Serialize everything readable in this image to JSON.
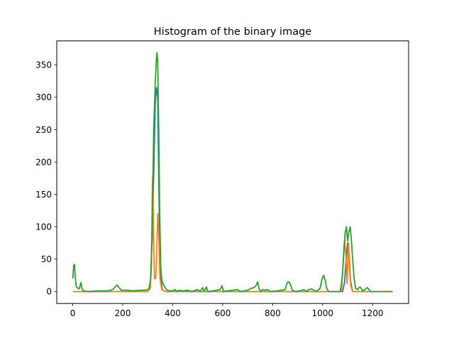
{
  "chart_data": {
    "type": "line",
    "title": "Histogram of the binary image",
    "xlabel": "",
    "ylabel": "",
    "xlim": [
      -64,
      1344
    ],
    "ylim": [
      -18.5,
      387
    ],
    "xticks": [
      0,
      200,
      400,
      600,
      800,
      1000,
      1200
    ],
    "yticks": [
      0,
      50,
      100,
      150,
      200,
      250,
      300,
      350
    ],
    "grid": false,
    "legend": "none",
    "series": [
      {
        "color": "#1f77b4",
        "points": [
          [
            0,
            0
          ],
          [
            300,
            0
          ],
          [
            310,
            5
          ],
          [
            318,
            80
          ],
          [
            325,
            200
          ],
          [
            330,
            290
          ],
          [
            335,
            315
          ],
          [
            340,
            300
          ],
          [
            345,
            150
          ],
          [
            350,
            30
          ],
          [
            358,
            3
          ],
          [
            370,
            0
          ],
          [
            1080,
            0
          ],
          [
            1088,
            15
          ],
          [
            1094,
            50
          ],
          [
            1100,
            75
          ],
          [
            1106,
            55
          ],
          [
            1112,
            15
          ],
          [
            1120,
            0
          ],
          [
            1280,
            0
          ]
        ]
      },
      {
        "color": "#ff7f0e",
        "points": [
          [
            0,
            0
          ],
          [
            300,
            0
          ],
          [
            310,
            5
          ],
          [
            315,
            40
          ],
          [
            318,
            150
          ],
          [
            320,
            180
          ],
          [
            323,
            100
          ],
          [
            327,
            20
          ],
          [
            332,
            20
          ],
          [
            336,
            60
          ],
          [
            340,
            120
          ],
          [
            344,
            90
          ],
          [
            349,
            20
          ],
          [
            356,
            3
          ],
          [
            370,
            0
          ],
          [
            1075,
            0
          ],
          [
            1082,
            40
          ],
          [
            1088,
            80
          ],
          [
            1093,
            55
          ],
          [
            1098,
            12
          ],
          [
            1101,
            50
          ],
          [
            1104,
            75
          ],
          [
            1107,
            40
          ],
          [
            1112,
            10
          ],
          [
            1120,
            0
          ],
          [
            1280,
            0
          ]
        ]
      },
      {
        "color": "#2ca02c",
        "points": [
          [
            0,
            20
          ],
          [
            4,
            40
          ],
          [
            7,
            42
          ],
          [
            10,
            22
          ],
          [
            14,
            8
          ],
          [
            20,
            5
          ],
          [
            26,
            4
          ],
          [
            30,
            10
          ],
          [
            33,
            14
          ],
          [
            36,
            6
          ],
          [
            42,
            1
          ],
          [
            60,
            0
          ],
          [
            100,
            1
          ],
          [
            140,
            1
          ],
          [
            160,
            3
          ],
          [
            172,
            8
          ],
          [
            178,
            10
          ],
          [
            185,
            6
          ],
          [
            195,
            2
          ],
          [
            220,
            2
          ],
          [
            240,
            1
          ],
          [
            270,
            2
          ],
          [
            290,
            2
          ],
          [
            305,
            4
          ],
          [
            312,
            20
          ],
          [
            318,
            100
          ],
          [
            324,
            250
          ],
          [
            330,
            320
          ],
          [
            334,
            355
          ],
          [
            337,
            369
          ],
          [
            340,
            355
          ],
          [
            344,
            250
          ],
          [
            348,
            120
          ],
          [
            352,
            40
          ],
          [
            356,
            18
          ],
          [
            362,
            12
          ],
          [
            368,
            7
          ],
          [
            375,
            3
          ],
          [
            385,
            1
          ],
          [
            400,
            1
          ],
          [
            410,
            3
          ],
          [
            415,
            0
          ],
          [
            425,
            2
          ],
          [
            440,
            1
          ],
          [
            460,
            2
          ],
          [
            475,
            0
          ],
          [
            500,
            3
          ],
          [
            510,
            0
          ],
          [
            520,
            6
          ],
          [
            526,
            0
          ],
          [
            535,
            7
          ],
          [
            540,
            0
          ],
          [
            560,
            1
          ],
          [
            590,
            3
          ],
          [
            597,
            9
          ],
          [
            603,
            0
          ],
          [
            620,
            1
          ],
          [
            640,
            2
          ],
          [
            660,
            3
          ],
          [
            670,
            0
          ],
          [
            700,
            2
          ],
          [
            715,
            5
          ],
          [
            725,
            6
          ],
          [
            735,
            10
          ],
          [
            740,
            15
          ],
          [
            745,
            5
          ],
          [
            752,
            0
          ],
          [
            760,
            3
          ],
          [
            770,
            2
          ],
          [
            780,
            3
          ],
          [
            790,
            0
          ],
          [
            820,
            1
          ],
          [
            850,
            3
          ],
          [
            858,
            14
          ],
          [
            865,
            15
          ],
          [
            872,
            10
          ],
          [
            878,
            2
          ],
          [
            890,
            0
          ],
          [
            910,
            1
          ],
          [
            925,
            3
          ],
          [
            935,
            0
          ],
          [
            945,
            3
          ],
          [
            955,
            4
          ],
          [
            965,
            2
          ],
          [
            975,
            0
          ],
          [
            990,
            5
          ],
          [
            998,
            20
          ],
          [
            1004,
            25
          ],
          [
            1010,
            18
          ],
          [
            1016,
            5
          ],
          [
            1024,
            0
          ],
          [
            1070,
            0
          ],
          [
            1078,
            20
          ],
          [
            1085,
            65
          ],
          [
            1090,
            90
          ],
          [
            1095,
            100
          ],
          [
            1100,
            78
          ],
          [
            1105,
            92
          ],
          [
            1110,
            100
          ],
          [
            1115,
            80
          ],
          [
            1120,
            50
          ],
          [
            1126,
            20
          ],
          [
            1132,
            5
          ],
          [
            1140,
            3
          ],
          [
            1145,
            6
          ],
          [
            1150,
            7
          ],
          [
            1155,
            4
          ],
          [
            1160,
            1
          ],
          [
            1170,
            3
          ],
          [
            1178,
            6
          ],
          [
            1184,
            4
          ],
          [
            1190,
            0
          ],
          [
            1280,
            0
          ]
        ]
      }
    ]
  }
}
